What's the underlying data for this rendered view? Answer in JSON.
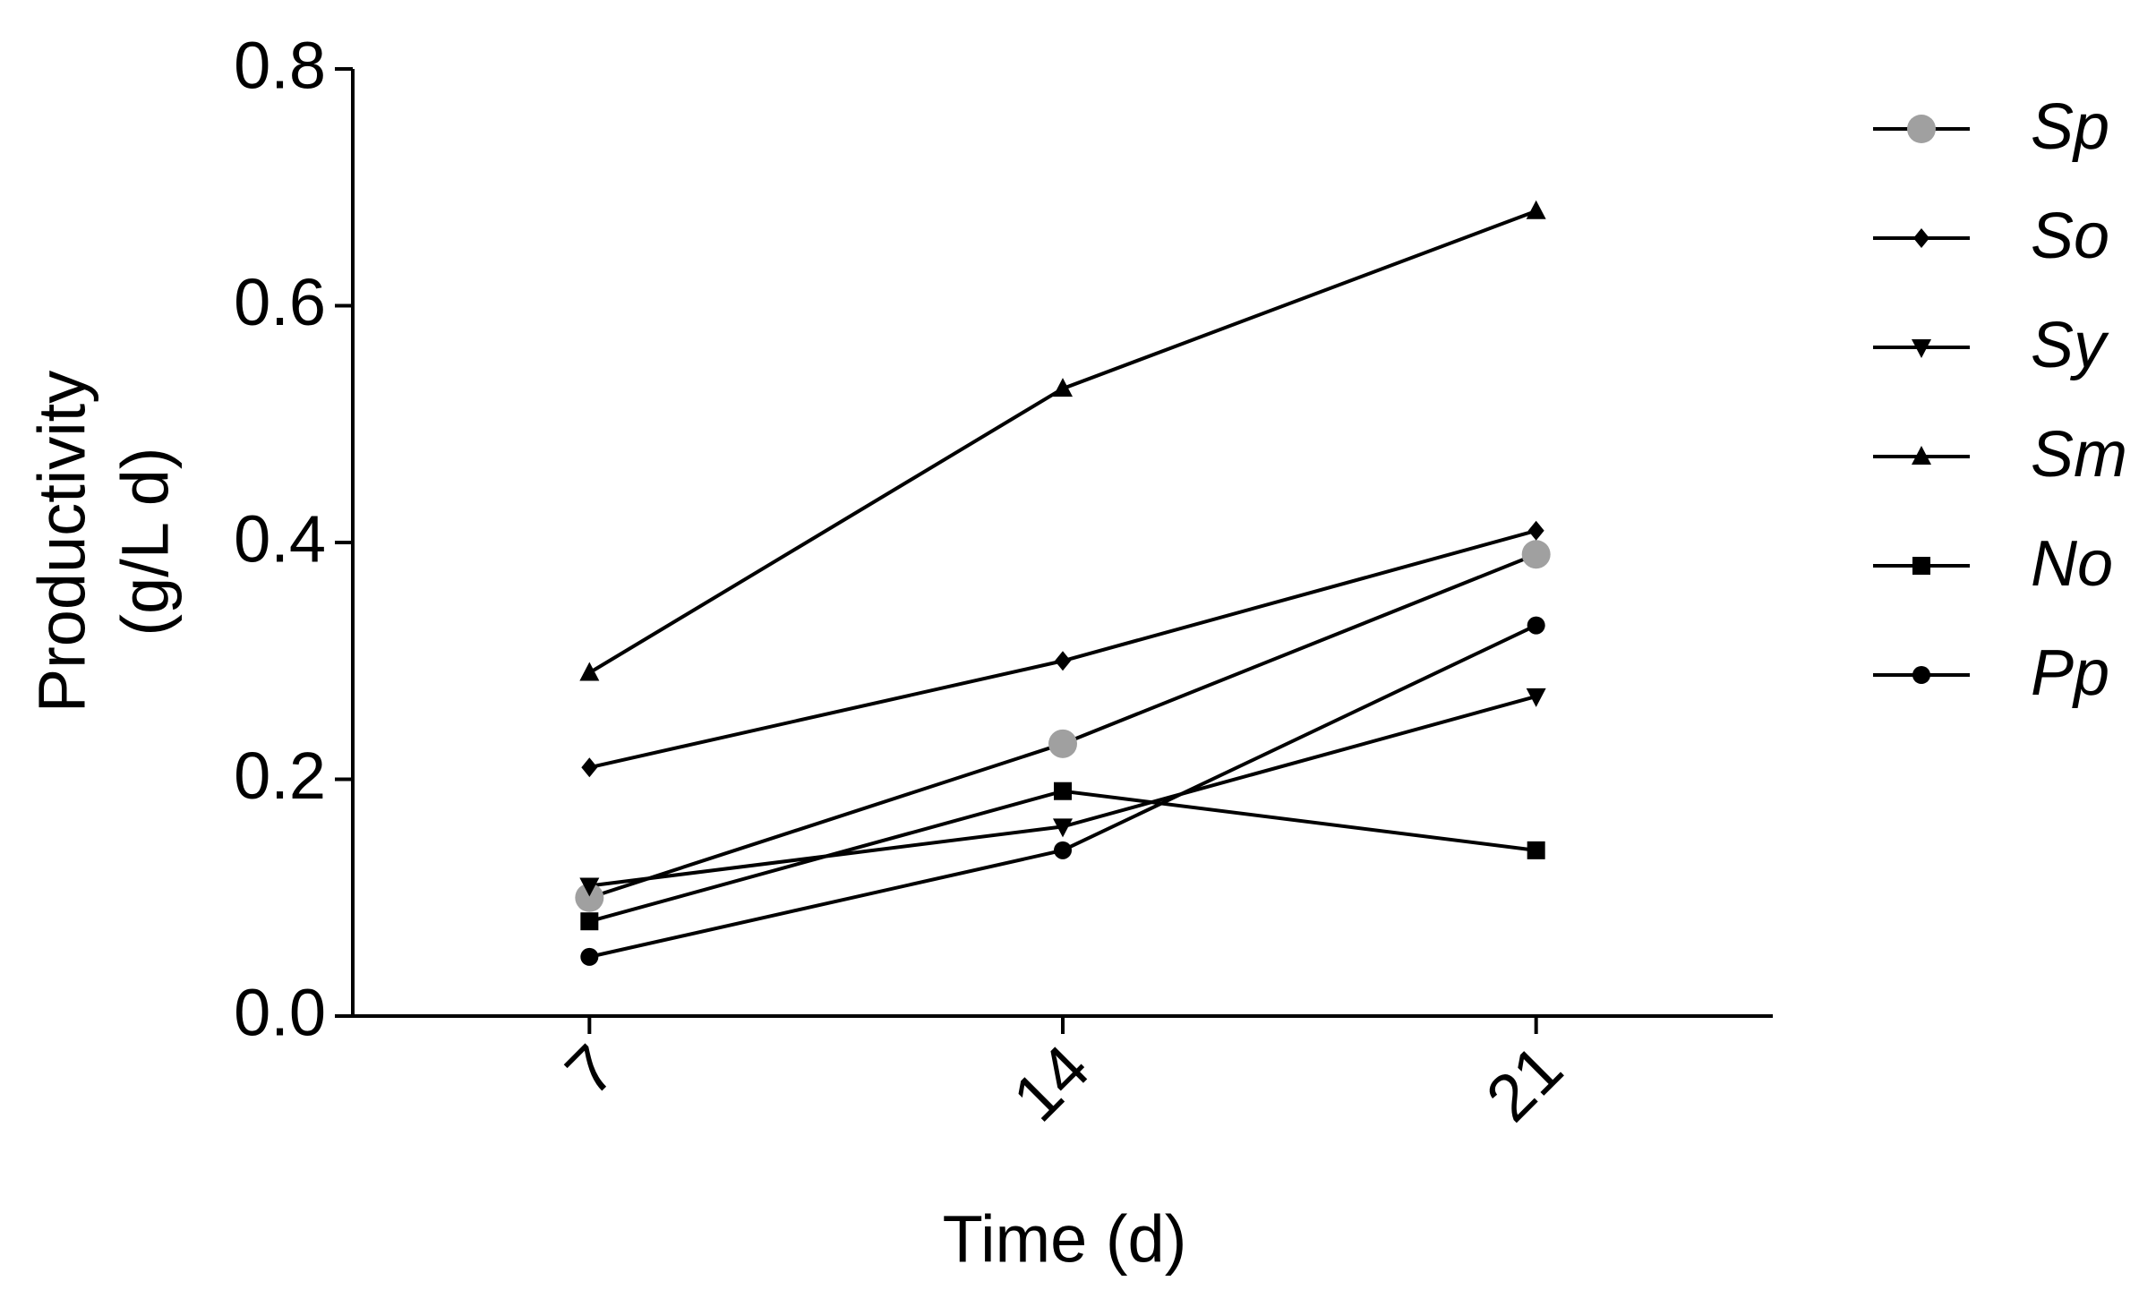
{
  "chart_data": {
    "type": "line",
    "xlabel": "Time (d)",
    "ylabel": [
      "Productivity",
      "(g/L d)"
    ],
    "xlim": [
      3.5,
      24.5
    ],
    "xticks": [
      7,
      14,
      21
    ],
    "ylim": [
      0,
      0.8
    ],
    "yticks": [
      {
        "value": 0,
        "label": "0.0"
      },
      0.2,
      0.4,
      0.6,
      0.8
    ],
    "line_color": "#000000",
    "x": [
      7,
      14,
      21
    ],
    "series": [
      {
        "name": "Sp",
        "color": "#a0a0a0",
        "marker": "circle-large",
        "values": [
          0.1,
          0.23,
          0.39
        ]
      },
      {
        "name": "So",
        "color": "#000000",
        "marker": "diamond",
        "values": [
          0.21,
          0.3,
          0.41
        ]
      },
      {
        "name": "Sy",
        "color": "#000000",
        "marker": "triangle-down",
        "values": [
          0.11,
          0.16,
          0.27
        ]
      },
      {
        "name": "Sm",
        "color": "#000000",
        "marker": "triangle-up",
        "values": [
          0.29,
          0.53,
          0.68
        ]
      },
      {
        "name": "No",
        "color": "#000000",
        "marker": "square",
        "values": [
          0.08,
          0.19,
          0.14
        ]
      },
      {
        "name": "Pp",
        "color": "#000000",
        "marker": "circle",
        "values": [
          0.05,
          0.14,
          0.33
        ]
      }
    ]
  }
}
